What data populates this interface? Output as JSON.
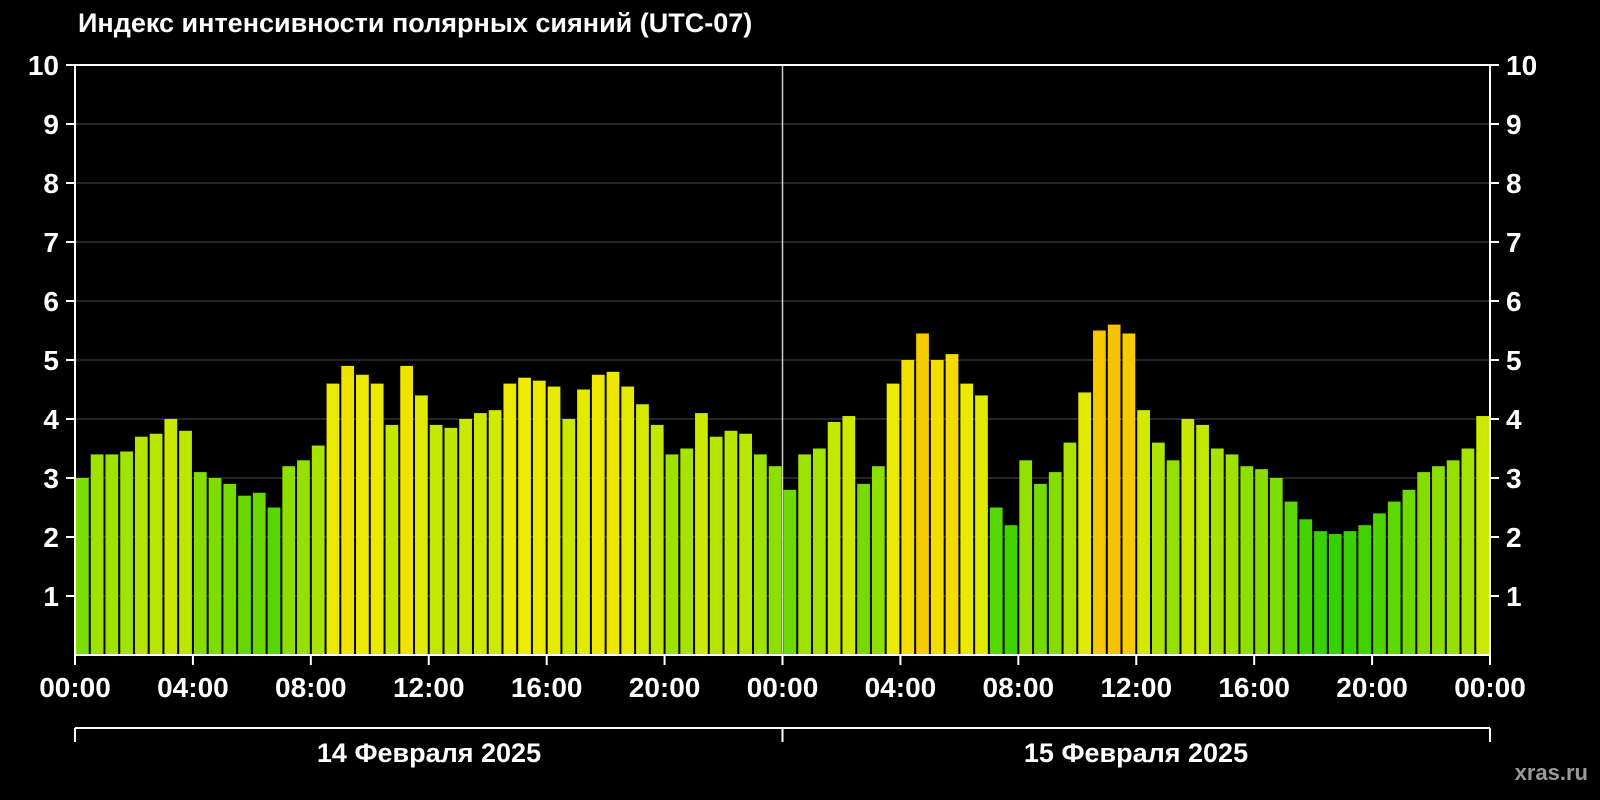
{
  "page": {
    "background": "#000000",
    "watermark": "xras.ru"
  },
  "chart_data": {
    "type": "bar",
    "title": "Индекс интенсивности полярных сияний (UTC-07)",
    "ylabel": "",
    "xlabel": "",
    "ylim": [
      0,
      10
    ],
    "y_ticks": [
      1,
      2,
      3,
      4,
      5,
      6,
      7,
      8,
      9,
      10
    ],
    "x_tick_labels": [
      "00:00",
      "04:00",
      "08:00",
      "12:00",
      "16:00",
      "20:00",
      "00:00",
      "04:00",
      "08:00",
      "12:00",
      "16:00",
      "20:00",
      "00:00"
    ],
    "x_start": "00:00",
    "x_step_minutes": 30,
    "grid": "horizontal",
    "legend": "none",
    "day_labels": [
      "14 Февраля 2025",
      "15 Февраля 2025"
    ],
    "series": [
      {
        "name": "14 Февраля 2025",
        "values": [
          3.0,
          3.4,
          3.4,
          3.45,
          3.7,
          3.75,
          4.0,
          3.8,
          3.1,
          3.0,
          2.9,
          2.7,
          2.75,
          2.5,
          3.2,
          3.3,
          3.55,
          4.6,
          4.9,
          4.75,
          4.6,
          3.9,
          4.9,
          4.4,
          3.9,
          3.85,
          4.0,
          4.1,
          4.15,
          4.6,
          4.7,
          4.65,
          4.55,
          4.0,
          4.5,
          4.75,
          4.8,
          4.55,
          4.25,
          3.9,
          3.4,
          3.5,
          4.1,
          3.7,
          3.8,
          3.75,
          3.4,
          3.2
        ]
      },
      {
        "name": "15 Февраля 2025",
        "values": [
          2.8,
          3.4,
          3.5,
          3.95,
          4.05,
          2.9,
          3.2,
          4.6,
          5.0,
          5.45,
          5.0,
          5.1,
          4.6,
          4.4,
          2.5,
          2.2,
          3.3,
          2.9,
          3.1,
          3.6,
          4.45,
          5.5,
          5.6,
          5.45,
          4.15,
          3.6,
          3.3,
          4.0,
          3.9,
          3.5,
          3.4,
          3.2,
          3.15,
          3.0,
          2.6,
          2.3,
          2.1,
          2.05,
          2.1,
          2.2,
          2.4,
          2.6,
          2.8,
          3.1,
          3.2,
          3.3,
          3.5,
          4.05
        ]
      }
    ],
    "color_stops": [
      {
        "value": 2.0,
        "color": "#2fd100"
      },
      {
        "value": 3.0,
        "color": "#7ddc00"
      },
      {
        "value": 3.5,
        "color": "#a5e300"
      },
      {
        "value": 4.0,
        "color": "#c9e900"
      },
      {
        "value": 4.7,
        "color": "#eeea00"
      },
      {
        "value": 5.2,
        "color": "#f5d800"
      },
      {
        "value": 5.7,
        "color": "#f7bd00"
      }
    ],
    "axis_color": "#ffffff",
    "grid_color": "#4a4a4a",
    "day_divider_color": "#cfcfcf",
    "text_color": "#ffffff"
  }
}
